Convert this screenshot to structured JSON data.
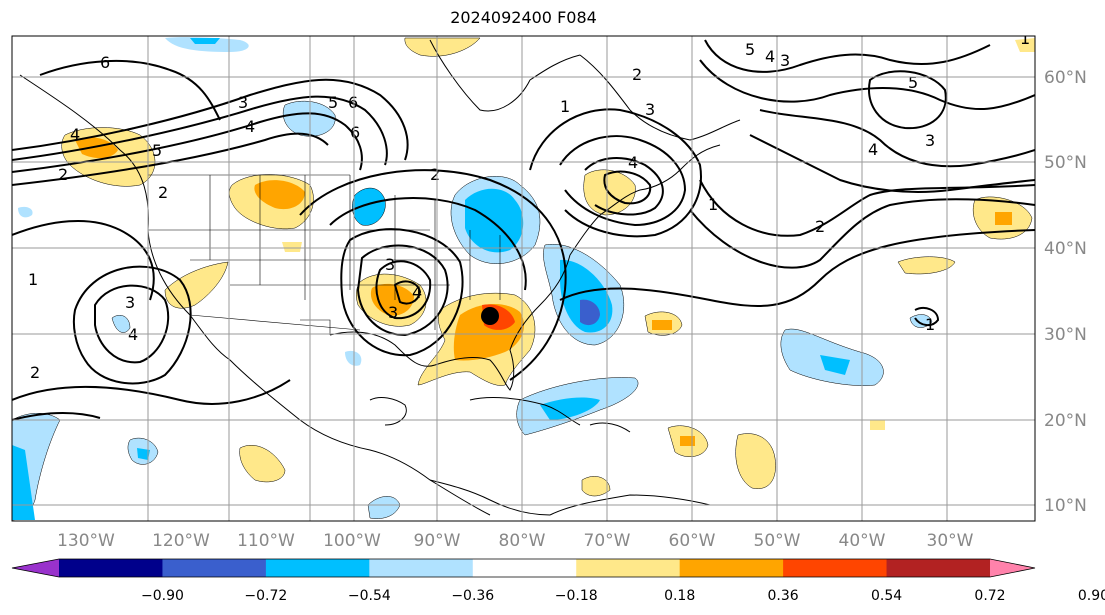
{
  "title": "2024092400 F084",
  "lon_labels": [
    "130°W",
    "120°W",
    "110°W",
    "100°W",
    "90°W",
    "80°W",
    "70°W",
    "60°W",
    "50°W",
    "40°W",
    "30°W"
  ],
  "lat_labels": [
    "60°N",
    "50°N",
    "40°N",
    "30°N",
    "20°N",
    "10°N"
  ],
  "colorbar": {
    "ticks": [
      "−0.90",
      "−0.72",
      "−0.54",
      "−0.36",
      "−0.18",
      "0.18",
      "0.36",
      "0.54",
      "0.72",
      "0.90"
    ],
    "colors": [
      "#9932cc",
      "#00008b",
      "#3a5fcd",
      "#00bfff",
      "#b0e2ff",
      "#ffffff",
      "#ffe88a",
      "#ffa500",
      "#ff4500",
      "#b22222",
      "#ff82ab"
    ]
  },
  "contour_labels": [
    "6",
    "5",
    "4",
    "3",
    "2",
    "1",
    "2",
    "3",
    "4",
    "6",
    "5",
    "6",
    "3",
    "4",
    "2",
    "1",
    "1",
    "2",
    "3",
    "4",
    "5",
    "2",
    "3",
    "4",
    "5",
    "3",
    "4",
    "1",
    "2",
    "3",
    "4",
    "1"
  ],
  "marker": {
    "type": "storm-center",
    "color": "#000000"
  }
}
